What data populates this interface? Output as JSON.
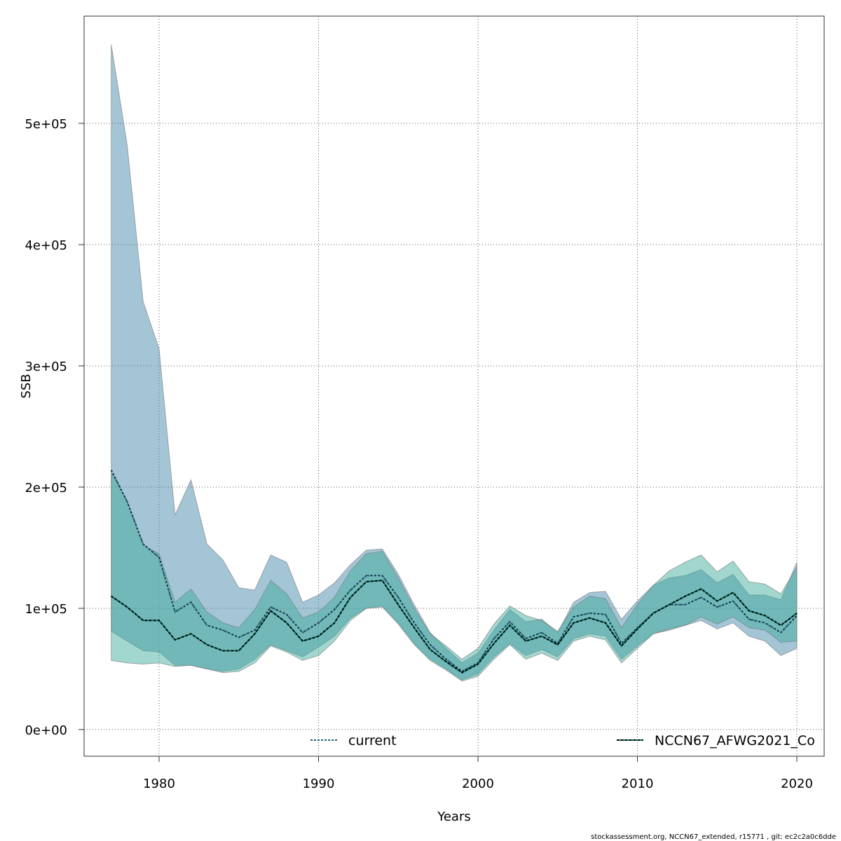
{
  "chart_data": {
    "type": "area",
    "title": "",
    "xlabel": "Years",
    "ylabel": "SSB",
    "xlim": [
      1975.4,
      2021.7
    ],
    "ylim": [
      -22000,
      588000
    ],
    "grid": true,
    "legend_placement": "bottom",
    "xticks": [
      1980,
      1990,
      2000,
      2010,
      2020
    ],
    "xtick_labels": [
      "1980",
      "1990",
      "2000",
      "2010",
      "2020"
    ],
    "yticks": [
      0,
      100000,
      200000,
      300000,
      400000,
      500000
    ],
    "ytick_labels": [
      "0e+00",
      "1e+05",
      "2e+05",
      "3e+05",
      "4e+05",
      "5e+05"
    ],
    "x": [
      1977,
      1978,
      1979,
      1980,
      1981,
      1982,
      1983,
      1984,
      1985,
      1986,
      1987,
      1988,
      1989,
      1990,
      1991,
      1992,
      1993,
      1994,
      1995,
      1996,
      1997,
      1998,
      1999,
      2000,
      2001,
      2002,
      2003,
      2004,
      2005,
      2006,
      2007,
      2008,
      2009,
      2010,
      2011,
      2012,
      2013,
      2014,
      2015,
      2016,
      2017,
      2018,
      2019,
      2020
    ],
    "series": [
      {
        "name": "current",
        "color": "#1f5f7a",
        "band_color": "#4a8bae",
        "values": [
          214,
          188,
          153,
          142,
          97,
          105,
          86,
          82,
          76,
          82,
          101,
          95,
          80,
          88,
          99,
          115,
          127,
          127,
          109,
          88,
          70,
          58,
          48,
          55,
          75,
          89,
          75,
          80,
          71,
          93,
          96,
          95,
          71,
          84,
          96,
          103,
          103,
          109,
          101,
          106,
          91,
          88,
          80,
          94
        ],
        "lower": [
          81,
          73,
          65,
          64,
          53,
          53,
          50,
          48,
          50,
          58,
          70,
          65,
          60,
          68,
          77,
          92,
          100,
          102,
          88,
          71,
          58,
          50,
          41,
          46,
          60,
          71,
          61,
          66,
          60,
          75,
          79,
          77,
          58,
          69,
          79,
          82,
          86,
          90,
          83,
          88,
          77,
          73,
          61,
          67
        ],
        "upper": [
          565,
          482,
          353,
          314,
          177,
          206,
          153,
          140,
          117,
          115,
          144,
          138,
          105,
          111,
          121,
          136,
          148,
          149,
          128,
          103,
          80,
          67,
          55,
          63,
          82,
          99,
          89,
          91,
          80,
          105,
          113,
          114,
          91,
          106,
          119,
          125,
          127,
          132,
          121,
          128,
          111,
          111,
          107,
          138
        ]
      },
      {
        "name": "NCCN67_AFWG2021_Co",
        "color": "#0e6b5c",
        "band_color": "#3aaa98",
        "values": [
          110,
          101,
          90,
          90,
          74,
          79,
          70,
          65,
          65,
          79,
          98,
          88,
          73,
          77,
          88,
          109,
          122,
          123,
          103,
          84,
          66,
          56,
          47,
          54,
          71,
          86,
          73,
          77,
          70,
          88,
          92,
          88,
          69,
          83,
          96,
          103,
          110,
          116,
          106,
          113,
          98,
          94,
          86,
          96
        ],
        "lower": [
          57,
          55,
          54,
          55,
          52,
          53,
          50,
          47,
          48,
          55,
          69,
          64,
          57,
          61,
          73,
          90,
          100,
          101,
          87,
          70,
          57,
          49,
          40,
          44,
          58,
          70,
          58,
          63,
          57,
          73,
          77,
          74,
          55,
          67,
          79,
          83,
          86,
          93,
          87,
          93,
          84,
          82,
          72,
          73
        ],
        "upper": [
          212,
          188,
          152,
          145,
          105,
          116,
          97,
          88,
          84,
          99,
          123,
          112,
          92,
          97,
          109,
          131,
          145,
          147,
          125,
          100,
          79,
          69,
          58,
          67,
          87,
          102,
          94,
          90,
          81,
          101,
          110,
          108,
          84,
          103,
          119,
          131,
          138,
          144,
          130,
          139,
          122,
          120,
          112,
          134
        ]
      }
    ],
    "value_unit_multiplier": 1000
  },
  "footer": "stockassessment.org, NCCN67_extended, r15771 , git: ec2c2a0c6dde"
}
